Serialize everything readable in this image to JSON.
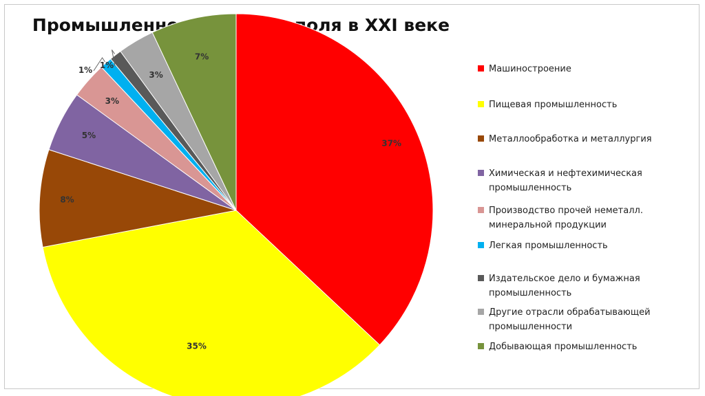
{
  "chart_data": {
    "type": "pie",
    "title": "Промышленность Севастополя в XXI веке",
    "slices": [
      {
        "name": "Машиностроение",
        "value": 37,
        "label": "37%",
        "color": "#ff0000"
      },
      {
        "name": "Пищевая промышленность",
        "value": 35,
        "label": "35%",
        "color": "#ffff00"
      },
      {
        "name": "Металлообработка и металлургия",
        "value": 8,
        "label": "8%",
        "color": "#984807"
      },
      {
        "name": "Химическая и нефтехимическая промышленность",
        "value": 5,
        "label": "5%",
        "color": "#8064a2"
      },
      {
        "name": "Производство прочей неметалл. минеральной продукции",
        "value": 3,
        "label": "3%",
        "color": "#d99694"
      },
      {
        "name": "Легкая промышленность",
        "value": 1,
        "label": "1%",
        "color": "#00b0f0"
      },
      {
        "name": "Издательское дело и бумажная промышленность",
        "value": 1,
        "label": "1%",
        "color": "#595959"
      },
      {
        "name": "Другие отрасли обрабатывающей промышленности",
        "value": 3,
        "label": "3%",
        "color": "#a6a6a6"
      },
      {
        "name": "Добывающая промышленность",
        "value": 7,
        "label": "7%",
        "color": "#77933c"
      }
    ],
    "legend_position": "right"
  }
}
